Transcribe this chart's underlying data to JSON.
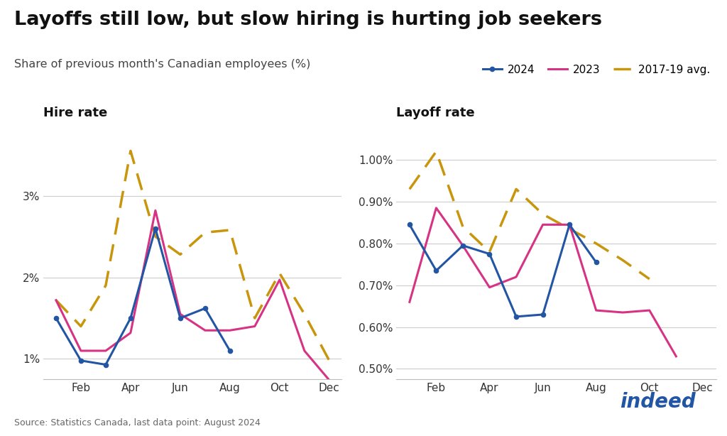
{
  "title": "Layoffs still low, but slow hiring is hurting job seekers",
  "subtitle": "Share of previous month's Canadian employees (%)",
  "source": "Source: Statistics Canada, last data point: August 2024",
  "left_panel_title": "Hire rate",
  "right_panel_title": "Layoff rate",
  "months": [
    1,
    2,
    3,
    4,
    5,
    6,
    7,
    8,
    9,
    10,
    11,
    12
  ],
  "month_tick_positions": [
    2,
    4,
    6,
    8,
    10,
    12
  ],
  "month_labels": [
    "Feb",
    "Apr",
    "Jun",
    "Aug",
    "Oct",
    "Dec"
  ],
  "hire_2024": [
    1.5,
    0.98,
    0.93,
    1.5,
    2.6,
    1.5,
    1.62,
    1.1,
    null,
    null,
    null,
    null
  ],
  "hire_2023": [
    1.72,
    1.1,
    1.1,
    1.32,
    2.82,
    1.55,
    1.35,
    1.35,
    1.4,
    1.97,
    1.1,
    0.74
  ],
  "hire_avg": [
    1.72,
    1.4,
    1.9,
    3.55,
    2.5,
    2.28,
    2.55,
    2.58,
    1.5,
    2.05,
    1.55,
    0.98
  ],
  "layoff_2024": [
    0.845,
    0.735,
    0.795,
    0.775,
    0.625,
    0.63,
    0.845,
    0.755,
    null,
    null,
    null,
    null
  ],
  "layoff_2023": [
    0.66,
    0.885,
    0.795,
    0.695,
    0.72,
    0.845,
    0.845,
    0.64,
    0.635,
    0.64,
    0.53,
    null
  ],
  "layoff_avg": [
    0.93,
    1.02,
    0.84,
    0.78,
    0.93,
    0.87,
    0.835,
    0.8,
    0.76,
    0.715,
    null,
    null
  ],
  "color_2024": "#2255a4",
  "color_2023": "#d63384",
  "color_avg": "#c8960c",
  "bg_color": "#ffffff",
  "hire_ylim": [
    0.75,
    3.85
  ],
  "hire_yticks": [
    1.0,
    2.0,
    3.0
  ],
  "hire_ytick_labels": [
    "1%",
    "2%",
    "3%"
  ],
  "layoff_ylim": [
    0.475,
    1.08
  ],
  "layoff_yticks": [
    0.5,
    0.6,
    0.7,
    0.8,
    0.9,
    1.0
  ],
  "layoff_ytick_labels": [
    "0.50%",
    "0.60%",
    "0.70%",
    "0.80%",
    "0.90%",
    "1.00%"
  ]
}
